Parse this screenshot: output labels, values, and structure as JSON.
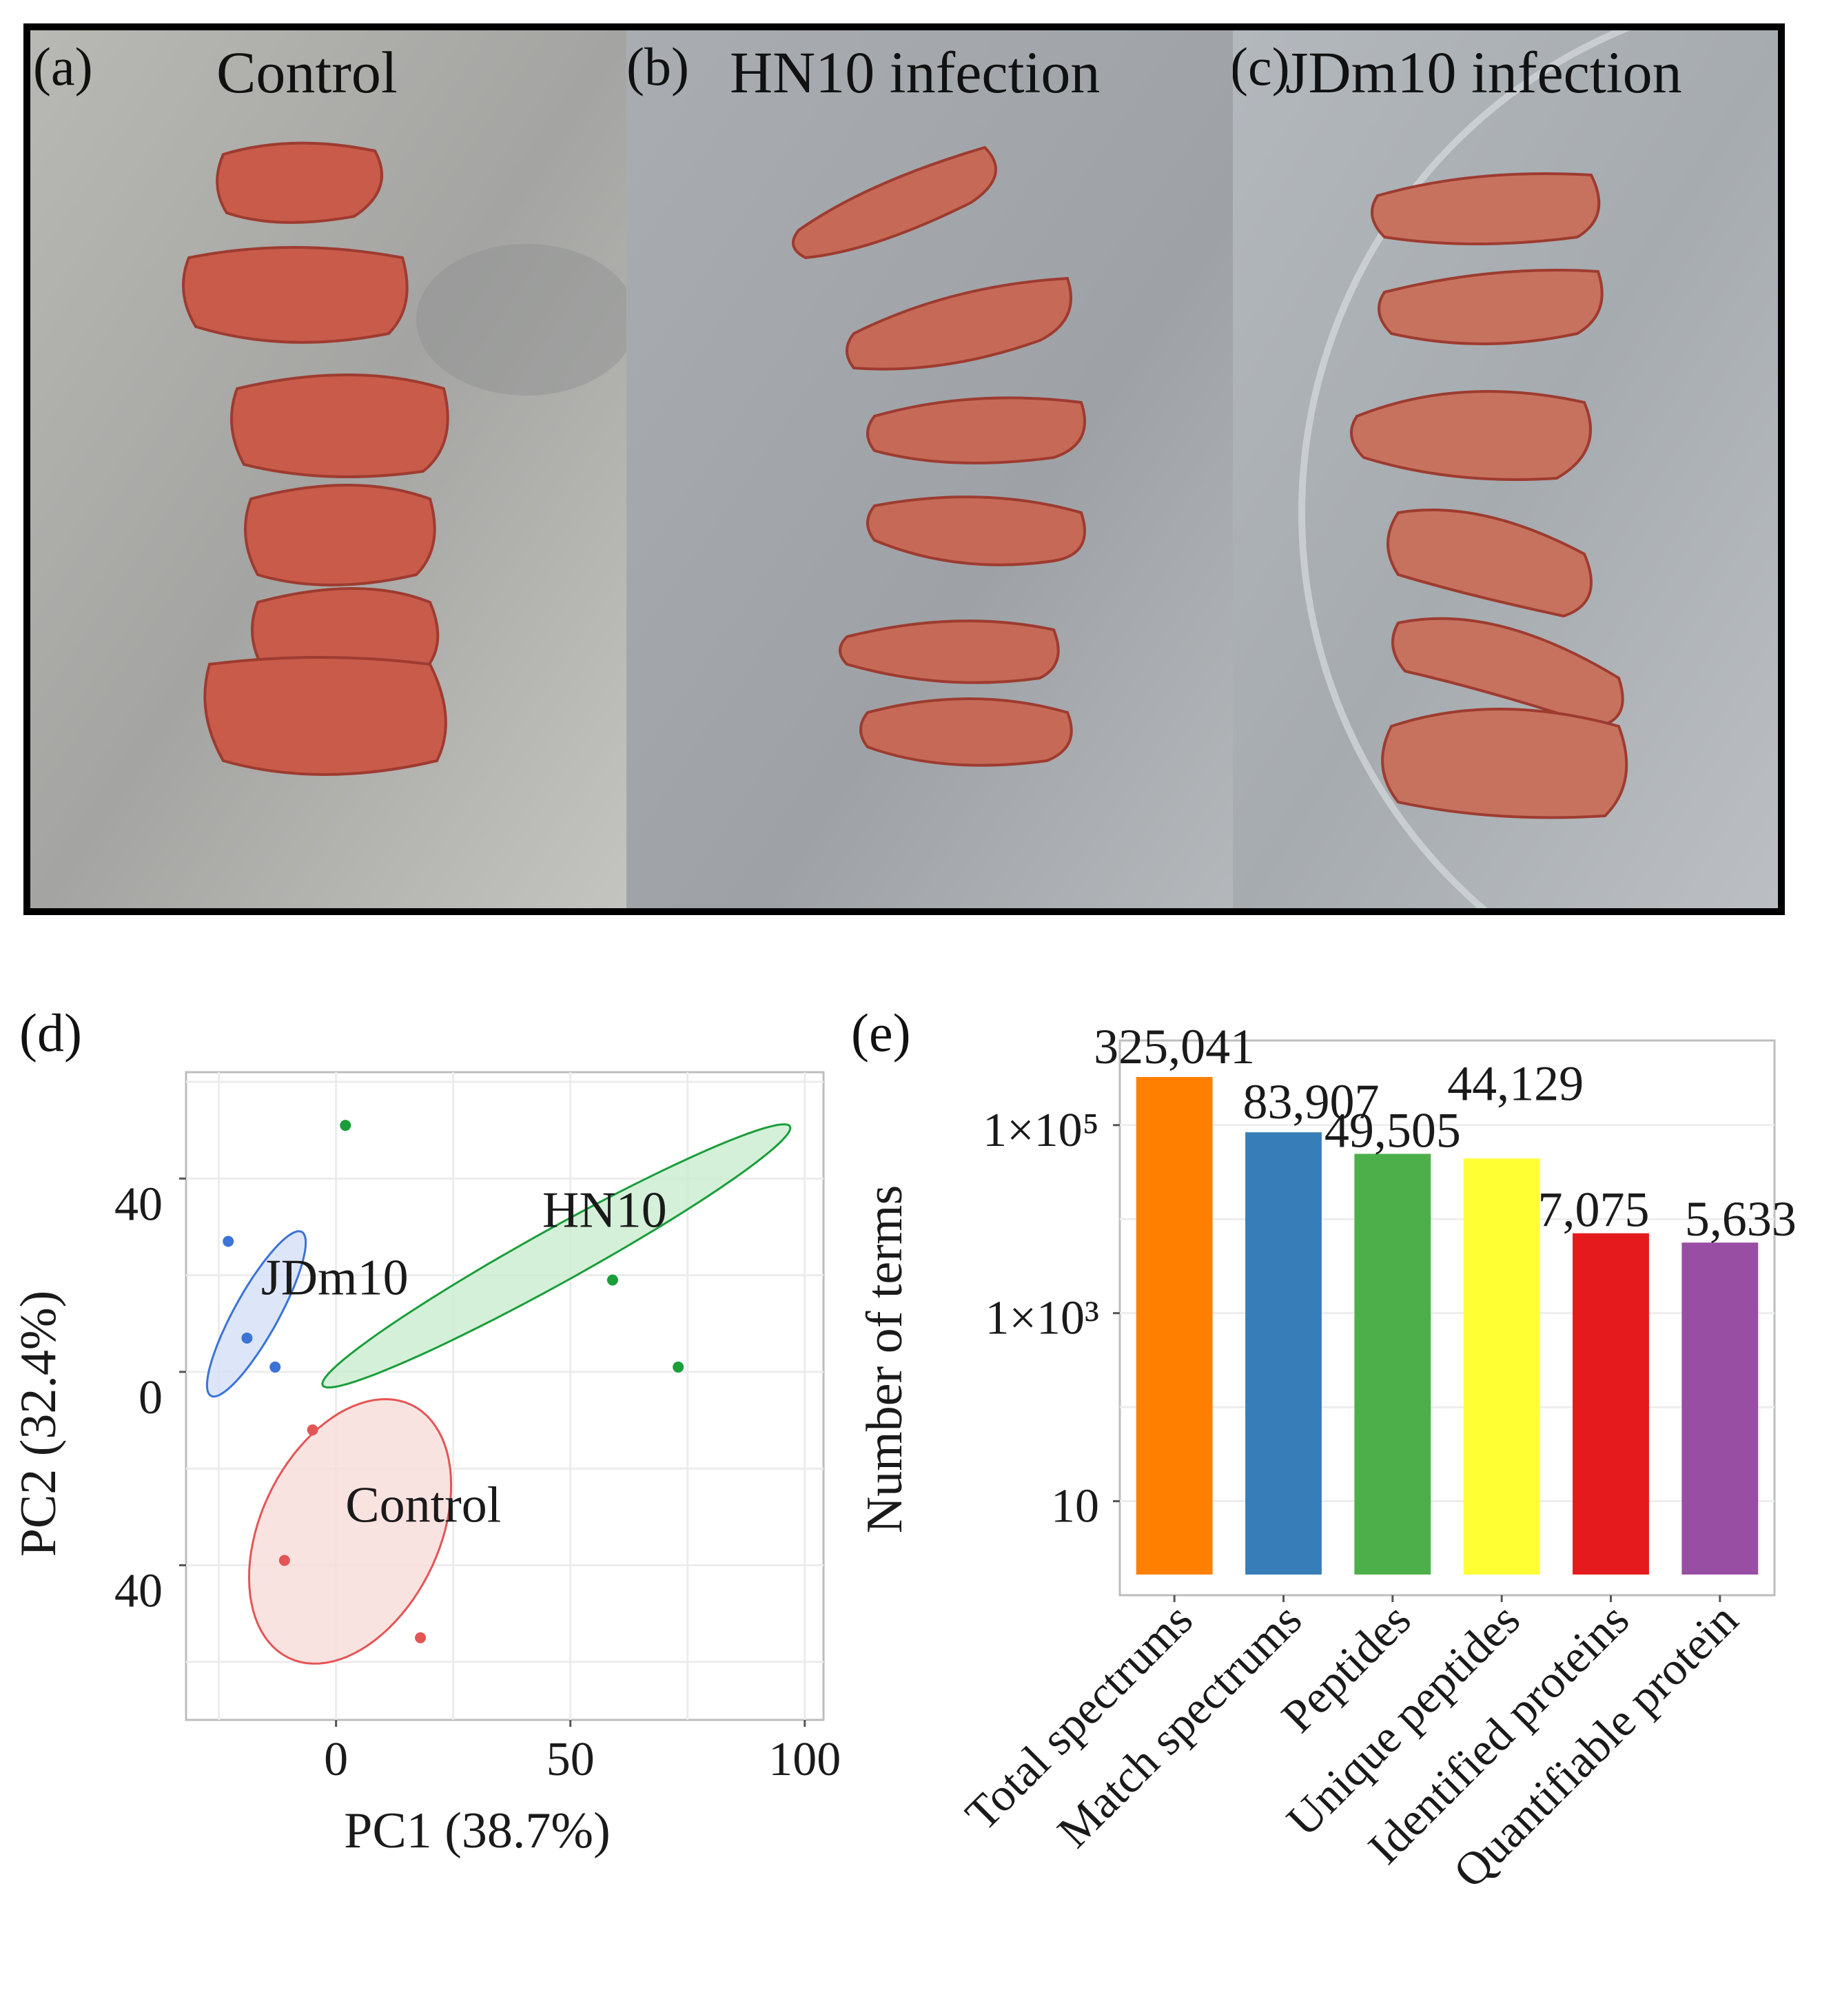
{
  "photo_panels": [
    {
      "letter": "(a)",
      "title": "Control",
      "tissue_color": "#c85b4a",
      "bg_color": "#9c9c9a"
    },
    {
      "letter": "(b)",
      "title": "HN10 infection",
      "tissue_color": "#c66a57",
      "bg_color": "#9b9ea1"
    },
    {
      "letter": "(c)",
      "title": "JDm10 infection",
      "tissue_color": "#c7725f",
      "bg_color": "#a5a8ab"
    }
  ],
  "pca": {
    "panel_letter": "(d)",
    "xlabel": "PC1 (38.7%)",
    "ylabel": "PC2 (32.4%)",
    "xticks": [
      {
        "v": 0,
        "label": "0"
      },
      {
        "v": 50,
        "label": "50"
      },
      {
        "v": 100,
        "label": "100"
      }
    ],
    "yticks": [
      {
        "v": 40,
        "label": "40"
      },
      {
        "v": 0,
        "label": "0"
      },
      {
        "v": -40,
        "label": "40"
      }
    ],
    "groups": [
      {
        "name": "HN10",
        "color": "#1a9e3a",
        "fill": "#cbeccf",
        "points": [
          [
            2,
            51
          ],
          [
            59,
            19
          ],
          [
            73,
            1
          ]
        ],
        "ellipse": {
          "cx": 47,
          "cy": 24,
          "rx": 57,
          "ry": 5.7,
          "angle": -29
        }
      },
      {
        "name": "JDm10",
        "color": "#3b73d6",
        "fill": "#d4e0f6",
        "points": [
          [
            -23,
            27
          ],
          [
            -19,
            7
          ],
          [
            -13,
            1
          ]
        ],
        "ellipse": {
          "cx": -17,
          "cy": 12,
          "rx": 20,
          "ry": 4.7,
          "angle": -61
        }
      },
      {
        "name": "Control",
        "color": "#e45555",
        "fill": "#f8dcd8",
        "points": [
          [
            -5,
            -12
          ],
          [
            -11,
            -39
          ],
          [
            18,
            -55
          ]
        ],
        "ellipse": {
          "cx": 3,
          "cy": -33,
          "rx": 30,
          "ry": 19,
          "angle": -64
        }
      }
    ],
    "xlim": [
      -32,
      104
    ],
    "ylim": [
      -72,
      62
    ]
  },
  "chart_data": {
    "type": "bar",
    "panel_letter": "(e)",
    "ylabel": "Number of terms",
    "yscale": "log",
    "ylim_log10": [
      0,
      5.9
    ],
    "yticks": [
      {
        "exp": 1,
        "label": "10"
      },
      {
        "exp": 3,
        "label": "1×10³"
      },
      {
        "exp": 5,
        "label": "1×10⁵"
      }
    ],
    "categories": [
      "Total spectrums",
      "Match spectrums",
      "Peptides",
      "Unique peptides",
      "Identified proteins",
      "Quantifiable protein"
    ],
    "values": [
      325041,
      83907,
      49505,
      44129,
      7075,
      5633
    ],
    "value_labels": [
      "325,041",
      "83,907",
      "49,505",
      "44,129",
      "7,075",
      "5,633"
    ],
    "colors": [
      "#ff7f00",
      "#377eb8",
      "#4daf4a",
      "#ffff33",
      "#e41a1c",
      "#984ea3"
    ]
  }
}
